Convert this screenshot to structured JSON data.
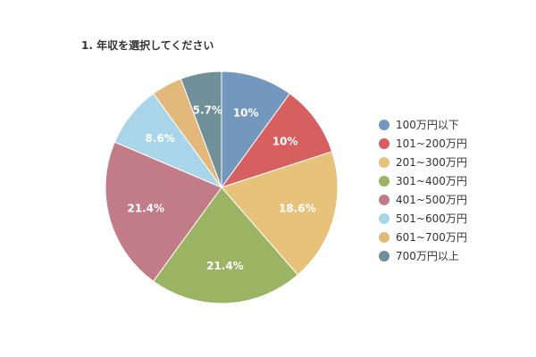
{
  "chart_data": {
    "type": "pie",
    "title": "1. 年収を選択してください",
    "start_angle_deg": 0,
    "direction": "clockwise",
    "legend_position": "right",
    "slices": [
      {
        "label": "100万円以下",
        "value": 10.0,
        "display": "10%",
        "color": "#7497bd"
      },
      {
        "label": "101~200万円",
        "value": 10.0,
        "display": "10%",
        "color": "#d65f60"
      },
      {
        "label": "201~300万円",
        "value": 18.6,
        "display": "18.6%",
        "color": "#e7c27b"
      },
      {
        "label": "301~400万円",
        "value": 21.4,
        "display": "21.4%",
        "color": "#9ab464"
      },
      {
        "label": "401~500万円",
        "value": 21.4,
        "display": "21.4%",
        "color": "#c27c88"
      },
      {
        "label": "501~600万円",
        "value": 8.6,
        "display": "8.6%",
        "color": "#a8d5ea"
      },
      {
        "label": "601~700万円",
        "value": 4.3,
        "display": "",
        "color": "#e2b97b"
      },
      {
        "label": "700万円以上",
        "value": 5.7,
        "display": "5.7%",
        "color": "#6f8f99"
      }
    ]
  }
}
